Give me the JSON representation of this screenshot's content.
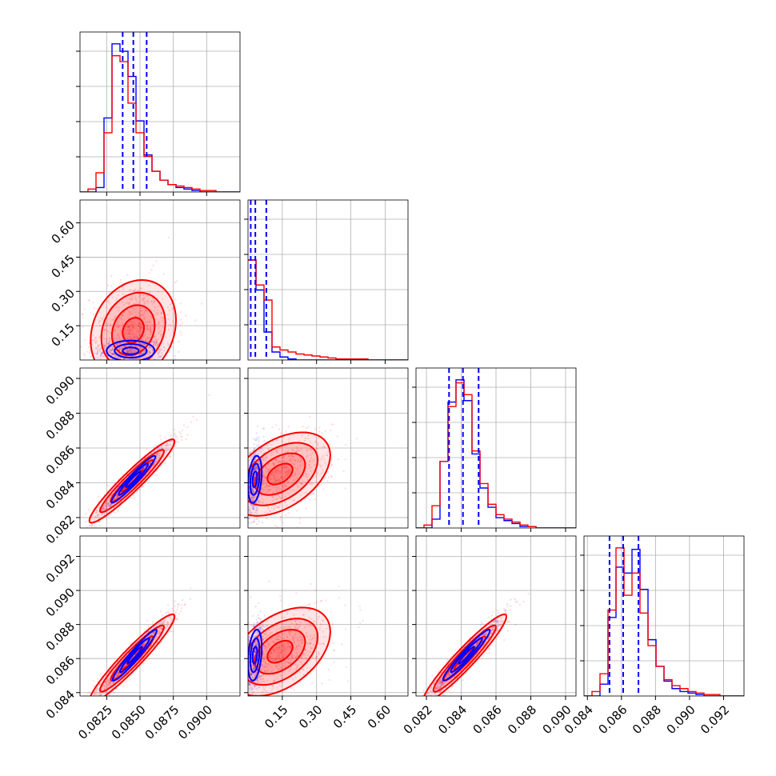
{
  "colors": {
    "blue": "#0000ff",
    "red": "#ff0000",
    "grid": "#b0b0b0",
    "frame": "#000000"
  },
  "chart_data": {
    "type": "scatter",
    "subtype": "corner-plot",
    "title": "",
    "parameters": [
      "",
      "",
      "",
      ""
    ],
    "grid": true,
    "legend": "none",
    "series": [
      {
        "color": "#0000ff",
        "style": "steps, 2D contours, scatter"
      },
      {
        "color": "#ff0000",
        "style": "steps, 2D contours, scatter"
      }
    ],
    "ranges": [
      [
        0.0805,
        0.0925
      ],
      [
        0.0,
        0.7
      ],
      [
        0.0814,
        0.0906
      ],
      [
        0.0838,
        0.0932
      ]
    ],
    "axis_ticks": [
      {
        "values": [
          0.0825,
          0.085,
          0.0875,
          0.09
        ],
        "labels": [
          "0.0825",
          "0.0850",
          "0.0875",
          "0.0900"
        ]
      },
      {
        "values": [
          0.15,
          0.3,
          0.45,
          0.6
        ],
        "labels": [
          "0.15",
          "0.30",
          "0.45",
          "0.60"
        ]
      },
      {
        "values": [
          0.082,
          0.084,
          0.086,
          0.088,
          0.09
        ],
        "labels": [
          "0.082",
          "0.084",
          "0.086",
          "0.088",
          "0.090"
        ]
      },
      {
        "values": [
          0.084,
          0.086,
          0.088,
          0.09,
          0.092
        ],
        "labels": [
          "0.084",
          "0.086",
          "0.088",
          "0.090",
          "0.092"
        ]
      }
    ],
    "quantiles": [
      {
        "blue": [
          0.0837,
          0.0845,
          0.0855
        ]
      },
      {
        "blue": [
          0.012,
          0.032,
          0.08
        ]
      },
      {
        "blue": [
          0.0833,
          0.0841,
          0.085
        ]
      },
      {
        "blue": [
          0.0853,
          0.0861,
          0.087
        ]
      }
    ],
    "histograms": [
      {
        "edges_range": [
          0.0805,
          0.0925
        ],
        "bins": 20,
        "blue": [
          0,
          0,
          0.03,
          0.5,
          1.0,
          0.95,
          0.78,
          0.48,
          0.25,
          0.14,
          0.08,
          0.05,
          0.03,
          0.02,
          0.01,
          0,
          0,
          0,
          0,
          0
        ],
        "red": [
          0,
          0.02,
          0.13,
          0.4,
          0.92,
          0.88,
          0.6,
          0.4,
          0.24,
          0.14,
          0.08,
          0.05,
          0.04,
          0.03,
          0.02,
          0.01,
          0.01,
          0,
          0,
          0
        ]
      },
      {
        "edges_range": [
          0.0,
          0.7
        ],
        "bins": 20,
        "blue": [
          1.0,
          0.7,
          0.28,
          0.08,
          0.03,
          0.01,
          0,
          0,
          0,
          0,
          0,
          0,
          0,
          0,
          0,
          0,
          0,
          0,
          0,
          0
        ],
        "red": [
          1.0,
          0.75,
          0.6,
          0.13,
          0.1,
          0.08,
          0.06,
          0.05,
          0.04,
          0.03,
          0.02,
          0.01,
          0.01,
          0.01,
          0.01,
          0,
          0,
          0,
          0,
          0
        ],
        "ylim": [
          0,
          1.6
        ]
      },
      {
        "edges_range": [
          0.0814,
          0.0906
        ],
        "bins": 20,
        "blue": [
          0,
          0,
          0.06,
          0.45,
          0.85,
          1.0,
          0.86,
          0.5,
          0.27,
          0.14,
          0.07,
          0.05,
          0.03,
          0.01,
          0.01,
          0,
          0,
          0,
          0,
          0
        ],
        "red": [
          0,
          0.02,
          0.15,
          0.45,
          0.82,
          0.98,
          0.9,
          0.52,
          0.3,
          0.16,
          0.09,
          0.06,
          0.04,
          0.02,
          0.01,
          0,
          0,
          0,
          0,
          0
        ]
      },
      {
        "edges_range": [
          0.0838,
          0.0932
        ],
        "bins": 20,
        "blue": [
          0,
          0,
          0.08,
          0.53,
          0.87,
          0.83,
          0.99,
          0.72,
          0.38,
          0.2,
          0.1,
          0.05,
          0.03,
          0.02,
          0.01,
          0,
          0,
          0,
          0,
          0
        ],
        "red": [
          0,
          0.03,
          0.15,
          0.58,
          1.0,
          0.68,
          0.83,
          0.56,
          0.34,
          0.2,
          0.11,
          0.07,
          0.05,
          0.03,
          0.02,
          0.01,
          0.01,
          0,
          0,
          0
        ]
      }
    ],
    "pairs": [
      {
        "x_param": 0,
        "y_param": 1,
        "blue": {
          "mean": [
            0.0843,
            0.04
          ],
          "sd": [
            0.0012,
            0.03
          ],
          "rho": 0.0
        },
        "red": {
          "mean": [
            0.0845,
            0.13
          ],
          "sd": [
            0.0016,
            0.11
          ],
          "rho": 0.2
        }
      },
      {
        "x_param": 0,
        "y_param": 2,
        "blue": {
          "mean": [
            0.0845,
            0.0842
          ],
          "sd": [
            0.0011,
            0.0009
          ],
          "rho": 0.96
        },
        "red": {
          "mean": [
            0.0844,
            0.0841
          ],
          "sd": [
            0.0016,
            0.0012
          ],
          "rho": 0.95
        }
      },
      {
        "x_param": 1,
        "y_param": 2,
        "blue": {
          "mean": [
            0.03,
            0.0842
          ],
          "sd": [
            0.02,
            0.0009
          ],
          "rho": 0.3
        },
        "red": {
          "mean": [
            0.14,
            0.0845
          ],
          "sd": [
            0.11,
            0.0012
          ],
          "rho": 0.45
        }
      },
      {
        "x_param": 0,
        "y_param": 3,
        "blue": {
          "mean": [
            0.0846,
            0.0862
          ],
          "sd": [
            0.0011,
            0.001
          ],
          "rho": 0.96
        },
        "red": {
          "mean": [
            0.0844,
            0.086
          ],
          "sd": [
            0.0016,
            0.0013
          ],
          "rho": 0.95
        }
      },
      {
        "x_param": 1,
        "y_param": 3,
        "blue": {
          "mean": [
            0.03,
            0.0862
          ],
          "sd": [
            0.02,
            0.001
          ],
          "rho": 0.3
        },
        "red": {
          "mean": [
            0.14,
            0.0864
          ],
          "sd": [
            0.11,
            0.0013
          ],
          "rho": 0.45
        }
      },
      {
        "x_param": 2,
        "y_param": 3,
        "blue": {
          "mean": [
            0.0843,
            0.0862
          ],
          "sd": [
            0.0009,
            0.001
          ],
          "rho": 0.96
        },
        "red": {
          "mean": [
            0.0842,
            0.086
          ],
          "sd": [
            0.0012,
            0.0013
          ],
          "rho": 0.95
        }
      }
    ]
  }
}
